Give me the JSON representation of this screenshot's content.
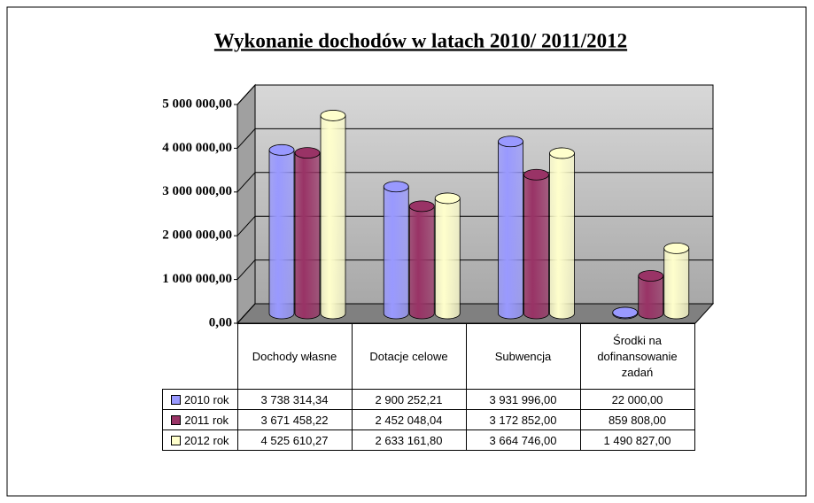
{
  "chart_data": {
    "type": "bar",
    "title": "Wykonanie dochodów w latach 2010/ 2011/2012",
    "categories": [
      "Dochody własne",
      "Dotacje celowe",
      "Subwencja",
      "Środki na dofinansowanie zadań"
    ],
    "series": [
      {
        "name": "2010 rok",
        "color": "#9999ff",
        "values": [
          3738314.34,
          2900252.21,
          3931996.0,
          22000.0
        ],
        "value_labels": [
          "3 738 314,34",
          "2 900 252,21",
          "3 931 996,00",
          "22 000,00"
        ]
      },
      {
        "name": "2011 rok",
        "color": "#993366",
        "values": [
          3671458.22,
          2452048.04,
          3172852.0,
          859808.0
        ],
        "value_labels": [
          "3 671 458,22",
          "2 452 048,04",
          "3 172 852,00",
          "859 808,00"
        ]
      },
      {
        "name": "2012 rok",
        "color": "#ffffcc",
        "values": [
          4525610.27,
          2633161.8,
          3664746.0,
          1490827.0
        ],
        "value_labels": [
          "4 525 610,27",
          "2 633 161,80",
          "3 664 746,00",
          "1 490 827,00"
        ]
      }
    ],
    "ylim": [
      0,
      5000000
    ],
    "yticks": [
      {
        "value": 0,
        "label": "0,00"
      },
      {
        "value": 1000000,
        "label": "1 000 000,00"
      },
      {
        "value": 2000000,
        "label": "2 000 000,00"
      },
      {
        "value": 3000000,
        "label": "3 000 000,00"
      },
      {
        "value": 4000000,
        "label": "4 000 000,00"
      },
      {
        "value": 5000000,
        "label": "5 000 000,00"
      }
    ],
    "grid": true
  }
}
